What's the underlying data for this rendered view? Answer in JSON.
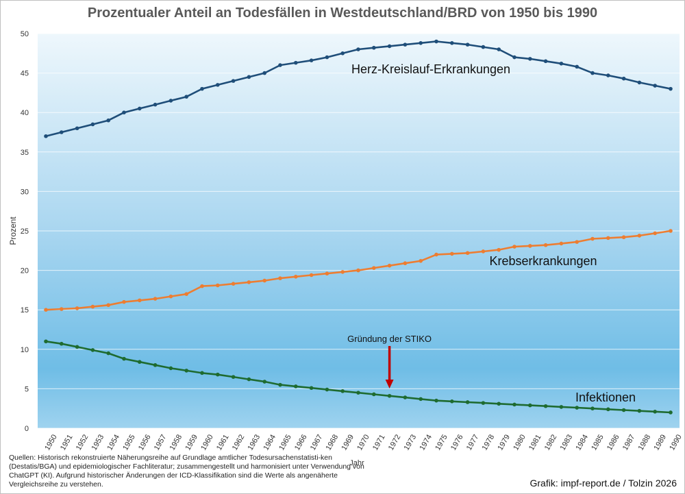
{
  "chart_data": {
    "type": "line",
    "title": "Prozentualer Anteil an Todesfällen in Westdeutschland/BRD von 1950 bis 1990",
    "xlabel": "Jahr",
    "ylabel": "Prozent",
    "ylim": [
      0,
      50
    ],
    "yticks": [
      0,
      5,
      10,
      15,
      20,
      25,
      30,
      35,
      40,
      45,
      50
    ],
    "x": [
      1950,
      1951,
      1952,
      1953,
      1954,
      1955,
      1956,
      1957,
      1958,
      1959,
      1960,
      1961,
      1962,
      1963,
      1964,
      1965,
      1966,
      1967,
      1968,
      1969,
      1970,
      1971,
      1972,
      1973,
      1974,
      1975,
      1976,
      1977,
      1978,
      1979,
      1980,
      1981,
      1982,
      1983,
      1984,
      1985,
      1986,
      1987,
      1988,
      1989,
      1990
    ],
    "grid": "horizontal",
    "series": [
      {
        "name": "Herz-Kreislauf-Erkrankungen",
        "color": "#1f4e79",
        "values": [
          37,
          37.5,
          38,
          38.5,
          39,
          40,
          40.5,
          41,
          41.5,
          42,
          43,
          43.5,
          44,
          44.5,
          45,
          46,
          46.3,
          46.6,
          47,
          47.5,
          48,
          48.2,
          48.4,
          48.6,
          48.8,
          49,
          48.8,
          48.6,
          48.3,
          48,
          47,
          46.8,
          46.5,
          46.2,
          45.8,
          45,
          44.7,
          44.3,
          43.8,
          43.4,
          43
        ]
      },
      {
        "name": "Krebserkrankungen",
        "color": "#ed7d31",
        "values": [
          15,
          15.1,
          15.2,
          15.4,
          15.6,
          16,
          16.2,
          16.4,
          16.7,
          17,
          18,
          18.1,
          18.3,
          18.5,
          18.7,
          19,
          19.2,
          19.4,
          19.6,
          19.8,
          20,
          20.3,
          20.6,
          20.9,
          21.2,
          22,
          22.1,
          22.2,
          22.4,
          22.6,
          23,
          23.1,
          23.2,
          23.4,
          23.6,
          24,
          24.1,
          24.2,
          24.4,
          24.7,
          25
        ]
      },
      {
        "name": "Infektionen",
        "color": "#1e6b30",
        "values": [
          11,
          10.7,
          10.3,
          9.9,
          9.5,
          8.8,
          8.4,
          8,
          7.6,
          7.3,
          7,
          6.8,
          6.5,
          6.2,
          5.9,
          5.5,
          5.3,
          5.1,
          4.9,
          4.7,
          4.5,
          4.3,
          4.1,
          3.9,
          3.7,
          3.5,
          3.4,
          3.3,
          3.2,
          3.1,
          3,
          2.9,
          2.8,
          2.7,
          2.6,
          2.5,
          2.4,
          2.3,
          2.2,
          2.1,
          2
        ]
      }
    ],
    "annotation": {
      "text": "Gründung der STIKO",
      "x": 1972,
      "arrow_color": "#c00000"
    }
  },
  "footnote": "Quellen: Historisch rekonstruierte Näherungsreihe auf Grundlage amtlicher Todesursachenstatisti-ken (Destatis/BGA) und epidemiologischer Fachliteratur; zusammengestellt und harmonisiert unter Verwendung von ChatGPT (KI). Aufgrund historischer Änderungen der ICD-Klassifikation sind die Werte als angenäherte Vergleichsreihe zu verstehen.",
  "credit": "Grafik: impf-report.de / Tolzin 2026"
}
